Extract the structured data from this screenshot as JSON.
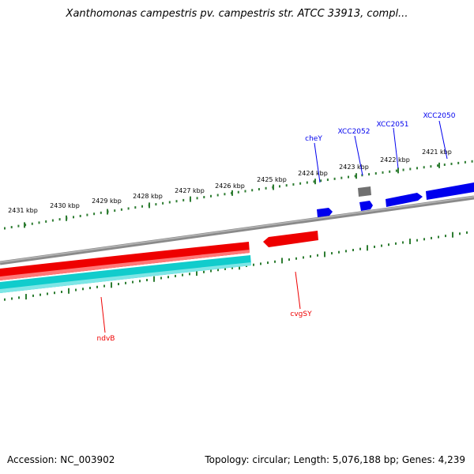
{
  "title": "Xanthomonas campestris pv. campestris str. ATCC 33913, compl...",
  "footer": {
    "accession": "Accession: NC_003902",
    "summary": "Topology: circular; Length: 5,076,188 bp; Genes: 4,239"
  },
  "colors": {
    "forward_gene": "#0000ee",
    "reverse_gene": "#ee0000",
    "rna_gene": "#11cccc",
    "other_gene": "#707070",
    "backbone": "#888888",
    "tick": "#2e7d32"
  },
  "scale_labels": [
    "2421 kbp",
    "2422 kbp",
    "2423 kbp",
    "2424 kbp",
    "2425 kbp",
    "2426 kbp",
    "2427 kbp",
    "2428 kbp",
    "2429 kbp",
    "2430 kbp",
    "2431 kbp"
  ],
  "genes": [
    {
      "name": "XCC2050",
      "strand": "forward"
    },
    {
      "name": "XCC2051",
      "strand": "forward"
    },
    {
      "name": "XCC2052",
      "strand": "forward"
    },
    {
      "name": "cheY",
      "strand": "forward"
    },
    {
      "name": "cvgSY",
      "strand": "reverse"
    },
    {
      "name": "ndvB",
      "strand": "reverse"
    }
  ]
}
